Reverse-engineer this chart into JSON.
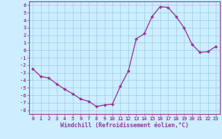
{
  "x": [
    0,
    1,
    2,
    3,
    4,
    5,
    6,
    7,
    8,
    9,
    10,
    11,
    12,
    13,
    14,
    15,
    16,
    17,
    18,
    19,
    20,
    21,
    22,
    23
  ],
  "y": [
    -2.5,
    -3.5,
    -3.7,
    -4.5,
    -5.2,
    -5.8,
    -6.5,
    -6.8,
    -7.5,
    -7.3,
    -7.2,
    -4.8,
    -2.8,
    1.5,
    2.2,
    4.5,
    5.8,
    5.7,
    4.5,
    3.0,
    0.8,
    -0.3,
    -0.2,
    0.5
  ],
  "line_color": "#993399",
  "marker": "D",
  "marker_size": 2,
  "line_width": 1.0,
  "xlabel": "Windchill (Refroidissement éolien,°C)",
  "xlabel_fontsize": 6,
  "ylabel_ticks": [
    6,
    5,
    4,
    3,
    2,
    1,
    0,
    -1,
    -2,
    -3,
    -4,
    -5,
    -6,
    -7,
    -8
  ],
  "xtick_labels": [
    "0",
    "1",
    "2",
    "3",
    "4",
    "5",
    "6",
    "7",
    "8",
    "9",
    "10",
    "11",
    "12",
    "13",
    "14",
    "15",
    "16",
    "17",
    "18",
    "19",
    "20",
    "21",
    "22",
    "23"
  ],
  "ylim": [
    -8.5,
    6.5
  ],
  "xlim": [
    -0.5,
    23.5
  ],
  "bg_color": "#cceeff",
  "grid_color": "#99ccdd",
  "tick_fontsize": 5
}
